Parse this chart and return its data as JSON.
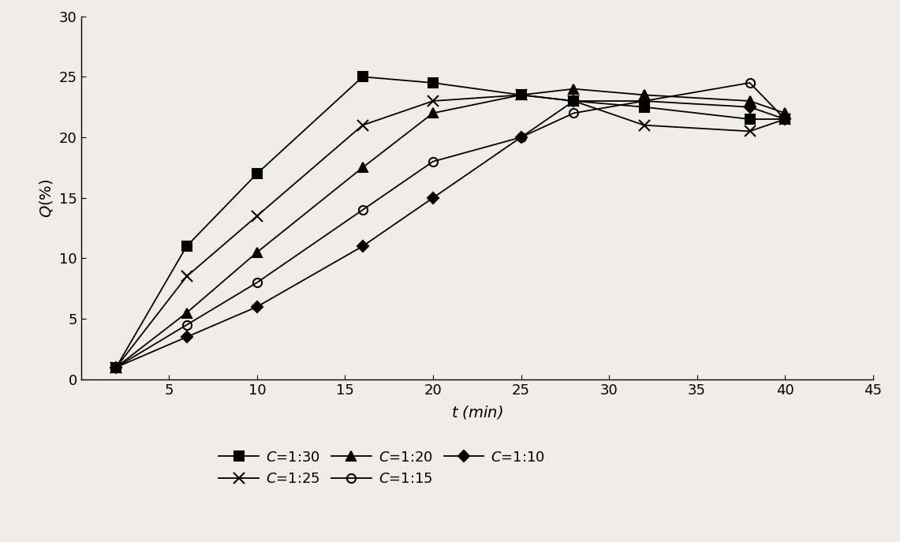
{
  "series": [
    {
      "label": "C=1:30",
      "marker": "s",
      "x": [
        2,
        6,
        10,
        16,
        20,
        25,
        28,
        32,
        38,
        40
      ],
      "y": [
        1,
        11,
        17,
        25,
        24.5,
        23.5,
        23,
        22.5,
        21.5,
        21.5
      ]
    },
    {
      "label": "C=1:25",
      "marker": "x",
      "x": [
        2,
        6,
        10,
        16,
        20,
        25,
        28,
        32,
        38,
        40
      ],
      "y": [
        1,
        8.5,
        13.5,
        21,
        23,
        23.5,
        23,
        21,
        20.5,
        21.5
      ]
    },
    {
      "label": "C=1:20",
      "marker": "^",
      "x": [
        2,
        6,
        10,
        16,
        20,
        25,
        28,
        32,
        38,
        40
      ],
      "y": [
        1,
        5.5,
        10.5,
        17.5,
        22,
        23.5,
        24,
        23.5,
        23,
        22
      ]
    },
    {
      "label": "C=1:15",
      "marker": "o",
      "x": [
        2,
        6,
        10,
        16,
        20,
        25,
        28,
        32,
        38,
        40
      ],
      "y": [
        1,
        4.5,
        8,
        14,
        18,
        20,
        22,
        23,
        24.5,
        21.5
      ]
    },
    {
      "label": "C=1:10",
      "marker": "D",
      "x": [
        2,
        6,
        10,
        16,
        20,
        25,
        28,
        32,
        38,
        40
      ],
      "y": [
        1,
        3.5,
        6,
        11,
        15,
        20,
        23,
        23,
        22.5,
        21.5
      ]
    }
  ],
  "color": "#000000",
  "bg_color": "#f0ece8",
  "xlabel": "$t$ (min)",
  "ylabel": "$Q$(%) ",
  "xlim": [
    0,
    45
  ],
  "ylim": [
    0,
    30
  ],
  "xticks": [
    5,
    10,
    15,
    20,
    25,
    30,
    35,
    40,
    45
  ],
  "yticks": [
    0,
    5,
    10,
    15,
    20,
    25,
    30
  ],
  "figsize": [
    11.41,
    6.87
  ],
  "dpi": 100,
  "legend_row1": [
    "C=1:30",
    "C=1:25",
    "C=1:20"
  ],
  "legend_row2": [
    "C=1:15",
    "C=1:10"
  ]
}
